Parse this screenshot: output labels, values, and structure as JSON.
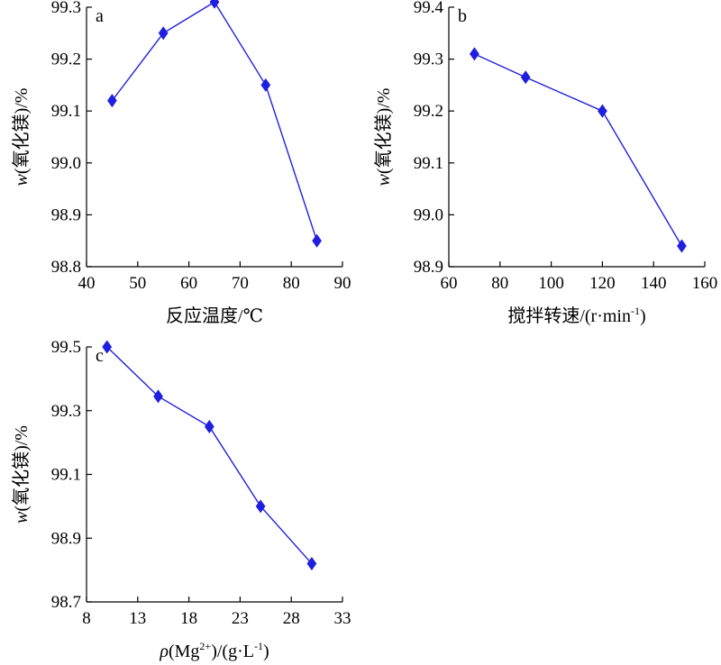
{
  "chart_data": [
    {
      "type": "line",
      "panel_label": "a",
      "xlabel": "反应温度/℃",
      "ylabel_italic": "w",
      "ylabel_rest": "(氧化镁)/%",
      "xlim": [
        40,
        90
      ],
      "ylim": [
        98.8,
        99.3
      ],
      "xticks": [
        40,
        50,
        60,
        70,
        80,
        90
      ],
      "yticks": [
        "98.8",
        "98.9",
        "99.0",
        "99.1",
        "99.2",
        "99.3"
      ],
      "x": [
        45,
        55,
        65,
        75,
        85
      ],
      "y": [
        99.12,
        99.25,
        99.31,
        99.15,
        98.85
      ],
      "color": "#1f1fe0",
      "marker": "diamond"
    },
    {
      "type": "line",
      "panel_label": "b",
      "xlabel": "搅拌转速/(r·min",
      "xlabel_sup": "-1",
      "xlabel_end": ")",
      "ylabel_italic": "w",
      "ylabel_rest": "(氧化镁)/%",
      "xlim": [
        60,
        160
      ],
      "ylim": [
        98.9,
        99.4
      ],
      "xticks": [
        60,
        80,
        100,
        120,
        140,
        160
      ],
      "yticks": [
        "98.9",
        "99.0",
        "99.1",
        "99.2",
        "99.3",
        "99.4"
      ],
      "x": [
        70,
        90,
        120,
        151
      ],
      "y": [
        99.31,
        99.265,
        99.2,
        98.94
      ],
      "color": "#1f1fe0",
      "marker": "diamond"
    },
    {
      "type": "line",
      "panel_label": "c",
      "xlabel_italic": "ρ",
      "xlabel": "(Mg",
      "xlabel_sup": "2+",
      "xlabel_end": ")/(g·L",
      "xlabel_sup2": "-1",
      "xlabel_end2": ")",
      "ylabel_italic": "w",
      "ylabel_rest": "(氧化镁)/%",
      "xlim": [
        8,
        33
      ],
      "ylim": [
        98.7,
        99.5
      ],
      "xticks": [
        8,
        13,
        18,
        23,
        28,
        33
      ],
      "yticks": [
        "98.7",
        "98.9",
        "99.1",
        "99.3",
        "99.5"
      ],
      "x": [
        10,
        15,
        20,
        25,
        30
      ],
      "y": [
        99.5,
        99.345,
        99.25,
        99.0,
        98.82
      ],
      "color": "#1f1fe0",
      "marker": "diamond"
    }
  ]
}
